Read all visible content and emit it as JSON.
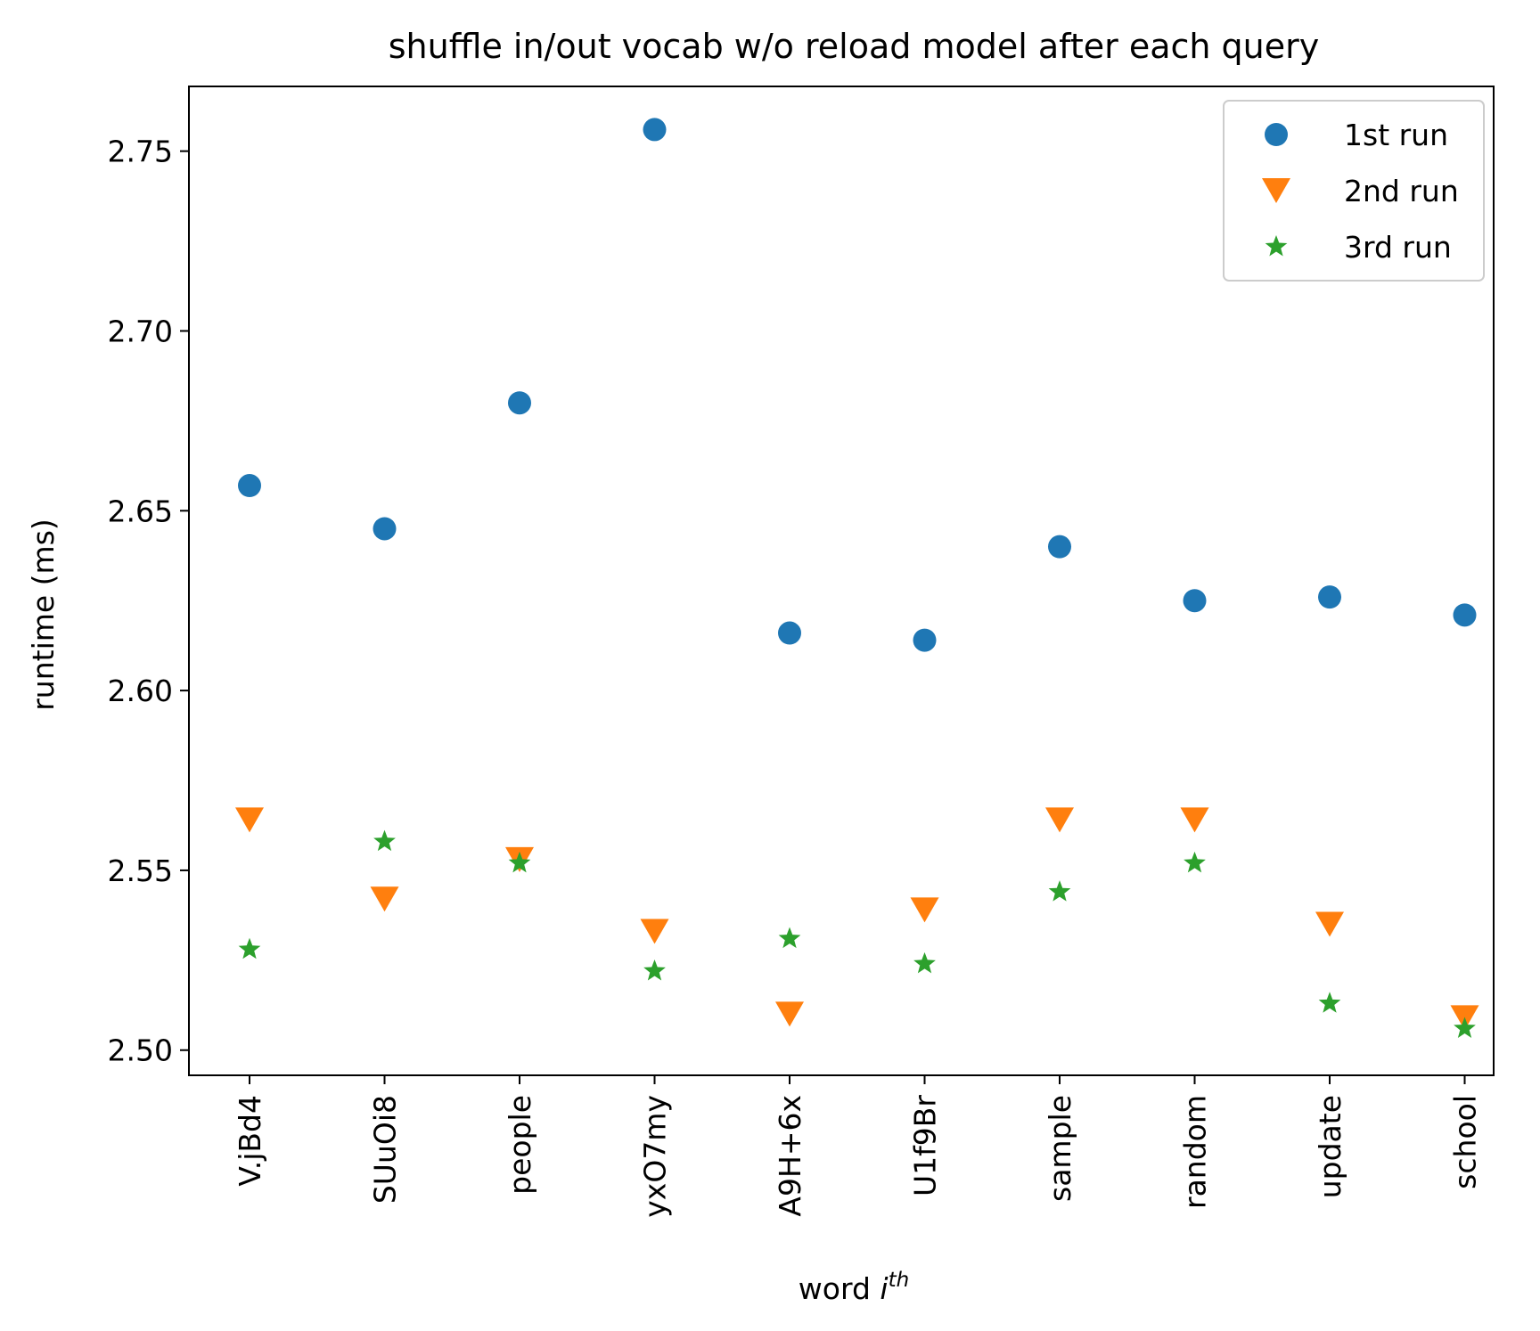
{
  "chart_data": {
    "type": "scatter",
    "title": "shuffle in/out vocab w/o reload model after each query",
    "xlabel": "word",
    "xlabel_sup": "i",
    "xlabel_sup_text": "th",
    "ylabel": "runtime (ms)",
    "categories": [
      "V.jBd4",
      "SUuOi8",
      "people",
      "yxO7my",
      "A9H+6x",
      "U1f9Br",
      "sample",
      "random",
      "update",
      "school"
    ],
    "ylim": [
      2.493,
      2.768
    ],
    "yticks": [
      2.5,
      2.55,
      2.6,
      2.65,
      2.7,
      2.75
    ],
    "ytick_labels": [
      "2.50",
      "2.55",
      "2.60",
      "2.65",
      "2.70",
      "2.75"
    ],
    "grid": false,
    "legend_position": "upper right",
    "series": [
      {
        "name": "1st run",
        "marker": "circle",
        "color": "#1f77b4",
        "values": [
          2.657,
          2.645,
          2.68,
          2.756,
          2.616,
          2.614,
          2.64,
          2.625,
          2.626,
          2.621
        ]
      },
      {
        "name": "2nd run",
        "marker": "triangle-down",
        "color": "#ff7f0e",
        "values": [
          2.564,
          2.542,
          2.553,
          2.533,
          2.51,
          2.539,
          2.564,
          2.564,
          2.535,
          2.509
        ]
      },
      {
        "name": "3rd run",
        "marker": "star",
        "color": "#2ca02c",
        "values": [
          2.528,
          2.558,
          2.552,
          2.522,
          2.531,
          2.524,
          2.544,
          2.552,
          2.513,
          2.506
        ]
      }
    ]
  }
}
